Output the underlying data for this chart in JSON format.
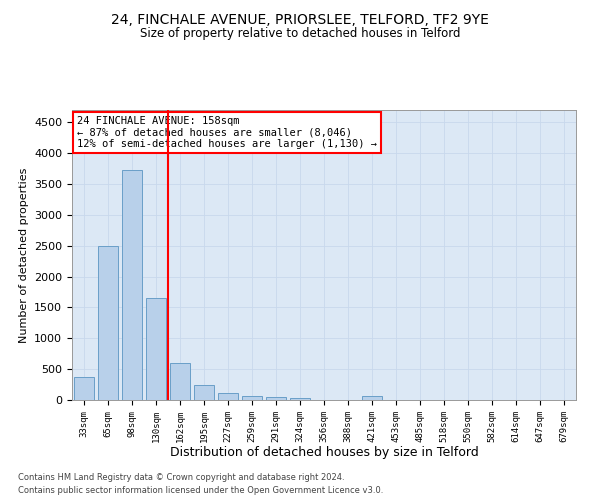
{
  "title_line1": "24, FINCHALE AVENUE, PRIORSLEE, TELFORD, TF2 9YE",
  "title_line2": "Size of property relative to detached houses in Telford",
  "xlabel": "Distribution of detached houses by size in Telford",
  "ylabel": "Number of detached properties",
  "categories": [
    "33sqm",
    "65sqm",
    "98sqm",
    "130sqm",
    "162sqm",
    "195sqm",
    "227sqm",
    "259sqm",
    "291sqm",
    "324sqm",
    "356sqm",
    "388sqm",
    "421sqm",
    "453sqm",
    "485sqm",
    "518sqm",
    "550sqm",
    "582sqm",
    "614sqm",
    "647sqm",
    "679sqm"
  ],
  "values": [
    380,
    2500,
    3720,
    1650,
    600,
    240,
    110,
    65,
    50,
    40,
    0,
    0,
    60,
    0,
    0,
    0,
    0,
    0,
    0,
    0,
    0
  ],
  "bar_color": "#b8d0ea",
  "bar_edge_color": "#6a9fc8",
  "annotation_title": "24 FINCHALE AVENUE: 158sqm",
  "annotation_line2": "← 87% of detached houses are smaller (8,046)",
  "annotation_line3": "12% of semi-detached houses are larger (1,130) →",
  "annotation_box_color": "white",
  "annotation_box_edge_color": "red",
  "ylim": [
    0,
    4700
  ],
  "yticks": [
    0,
    500,
    1000,
    1500,
    2000,
    2500,
    3000,
    3500,
    4000,
    4500
  ],
  "vline_color": "red",
  "vline_pos": 3.5,
  "grid_color": "#c8d8ec",
  "bg_color": "#dce8f5",
  "footer_line1": "Contains HM Land Registry data © Crown copyright and database right 2024.",
  "footer_line2": "Contains public sector information licensed under the Open Government Licence v3.0."
}
